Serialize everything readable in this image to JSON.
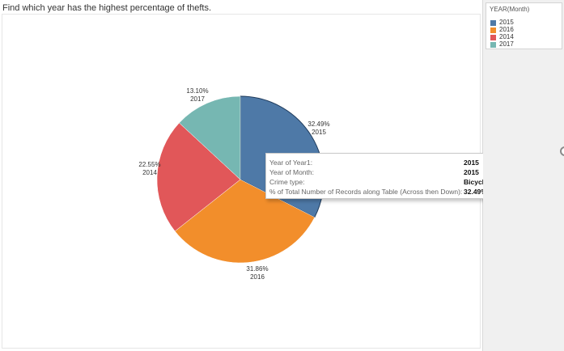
{
  "title": "Find which year has the highest percentage of thefts.",
  "legend": {
    "title": "YEAR(Month)",
    "items": [
      {
        "label": "2015",
        "color": "#4e79a7"
      },
      {
        "label": "2016",
        "color": "#f28e2b"
      },
      {
        "label": "2014",
        "color": "#e15759"
      },
      {
        "label": "2017",
        "color": "#76b7b2"
      }
    ]
  },
  "chart_data": {
    "type": "pie",
    "slices": [
      {
        "year": "2015",
        "value": 32.49,
        "label": "32.49%",
        "color": "#4e79a7"
      },
      {
        "year": "2016",
        "value": 31.86,
        "label": "31.86%",
        "color": "#f28e2b"
      },
      {
        "year": "2014",
        "value": 22.55,
        "label": "22.55%",
        "color": "#e15759"
      },
      {
        "year": "2017",
        "value": 13.1,
        "label": "13.10%",
        "color": "#76b7b2"
      }
    ],
    "highlighted": "2015"
  },
  "tooltip": {
    "rows": [
      {
        "key": "Year of Year1:",
        "value": "2015"
      },
      {
        "key": "Year of Month:",
        "value": "2015"
      },
      {
        "key": "Crime type:",
        "value": "Bicycle theft"
      },
      {
        "key": "% of Total Number of Records along Table (Across then Down):",
        "value": "32.49%"
      }
    ]
  }
}
